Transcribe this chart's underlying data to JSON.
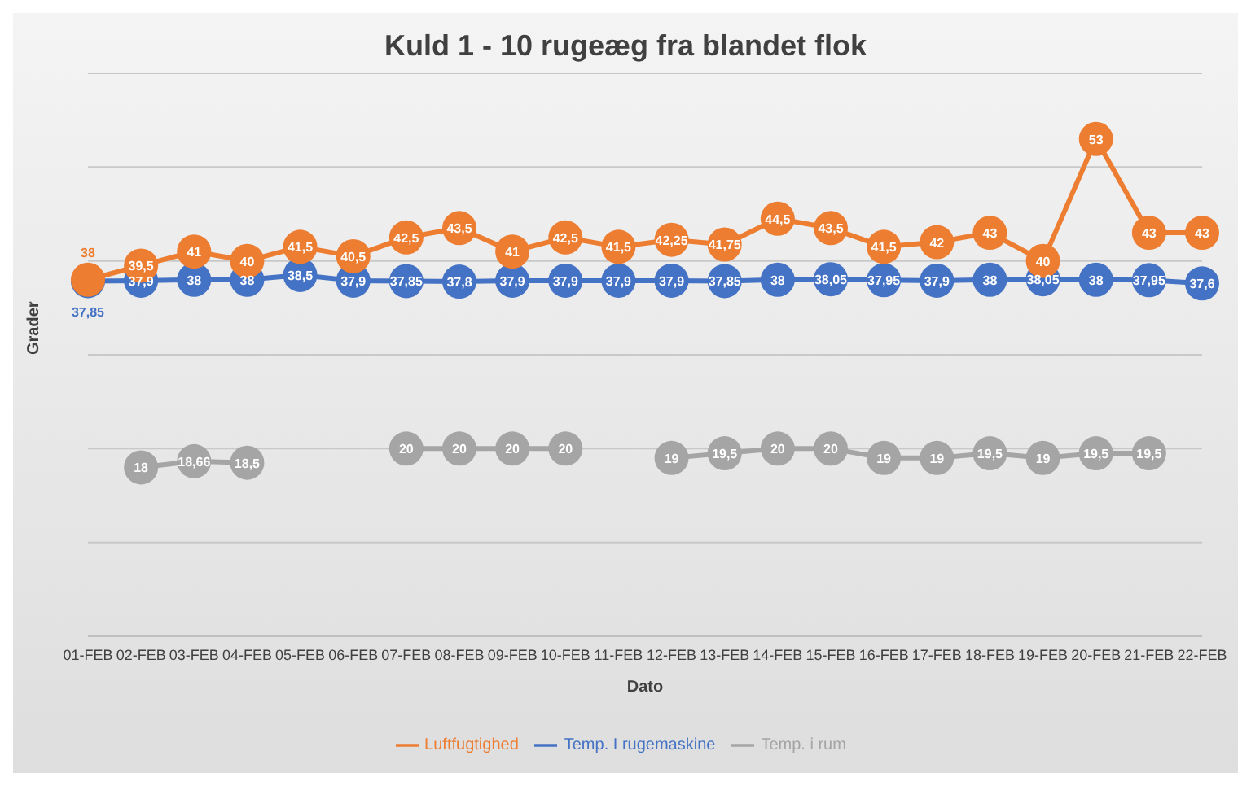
{
  "chart_data": {
    "type": "line",
    "title": "Kuld 1 - 10 rugeæg fra blandet flok",
    "xlabel": "Dato",
    "ylabel": "Grader",
    "categories": [
      "01-FEB",
      "02-FEB",
      "03-FEB",
      "04-FEB",
      "05-FEB",
      "06-FEB",
      "07-FEB",
      "08-FEB",
      "09-FEB",
      "10-FEB",
      "11-FEB",
      "12-FEB",
      "13-FEB",
      "14-FEB",
      "15-FEB",
      "16-FEB",
      "17-FEB",
      "18-FEB",
      "19-FEB",
      "20-FEB",
      "21-FEB",
      "22-FEB"
    ],
    "ylim": [
      0,
      60
    ],
    "yticks": [
      {
        "value": 0,
        "label": null
      },
      {
        "value": 10,
        "label": null
      },
      {
        "value": 20,
        "label": null
      },
      {
        "value": 30,
        "label": null
      },
      {
        "value": 40,
        "label": null
      },
      {
        "value": 50,
        "label": null
      },
      {
        "value": 60,
        "label": null
      }
    ],
    "tick_labels": "x",
    "grid": "y",
    "legend": "bottom",
    "marker": "circle",
    "line_style": "solid",
    "series": [
      {
        "name": "Temp. I rugemaskine",
        "color": "#4472c4",
        "values": [
          37.85,
          37.9,
          38,
          38,
          38.5,
          37.9,
          37.85,
          37.8,
          37.9,
          37.9,
          37.9,
          37.9,
          37.85,
          38,
          38.05,
          37.95,
          37.9,
          38,
          38.05,
          38,
          37.95,
          37.6
        ],
        "value_labels": [
          "37,85",
          "37,9",
          "38",
          "38",
          "38,5",
          "37,9",
          "37,85",
          "37,8",
          "37,9",
          "37,9",
          "37,9",
          "37,9",
          "37,85",
          "38",
          "38,05",
          "37,95",
          "37,9",
          "38",
          "38,05",
          "38",
          "37,95",
          "37,6"
        ]
      },
      {
        "name": "Luftfugtighed",
        "color": "#ed7d31",
        "values": [
          38,
          39.5,
          41,
          40,
          41.5,
          40.5,
          42.5,
          43.5,
          41,
          42.5,
          41.5,
          42.25,
          41.75,
          44.5,
          43.5,
          41.5,
          42,
          43,
          40,
          53,
          43,
          43
        ],
        "value_labels": [
          "38",
          "39,5",
          "41",
          "40",
          "41,5",
          "40,5",
          "42,5",
          "43,5",
          "41",
          "42,5",
          "41,5",
          "42,25",
          "41,75",
          "44,5",
          "43,5",
          "41,5",
          "42",
          "43",
          "40",
          "53",
          "43",
          "43"
        ]
      },
      {
        "name": "Temp. i rum",
        "color": "#a5a5a5",
        "values": [
          null,
          18,
          18.66,
          18.5,
          null,
          null,
          20,
          20,
          20,
          20,
          null,
          19,
          19.5,
          20,
          20,
          19,
          19,
          19.5,
          19,
          19.5,
          19.5,
          null
        ],
        "value_labels": [
          null,
          "18",
          "18,66",
          "18,5",
          null,
          null,
          "20",
          "20",
          "20",
          "20",
          null,
          "19",
          "19,5",
          "20",
          "20",
          "19",
          "19",
          "19,5",
          "19",
          "19,5",
          "19,5",
          null
        ]
      }
    ]
  }
}
